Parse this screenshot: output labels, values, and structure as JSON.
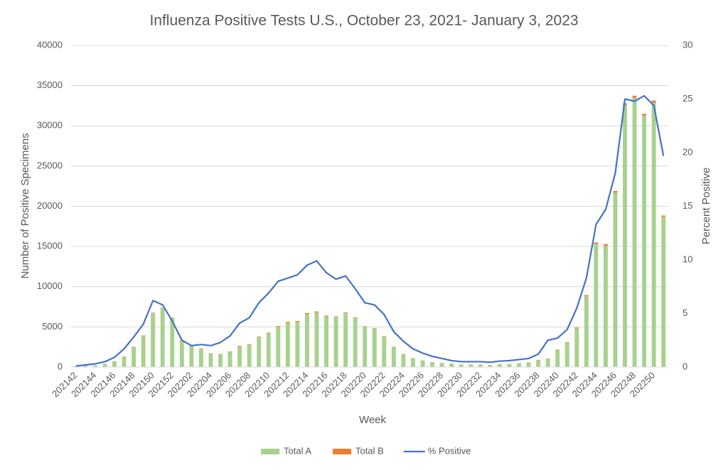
{
  "chart_data": {
    "type": "bar",
    "title": "Influenza Positive Tests U.S., October 23, 2021- January 3, 2023",
    "x_label": "Week",
    "y_label": "Number of Positive Specimens",
    "y2_label": "Percent Positive",
    "categories": [
      "202142",
      null,
      "202144",
      null,
      "202146",
      null,
      "202148",
      null,
      "202150",
      null,
      "202152",
      null,
      "202202",
      null,
      "202204",
      null,
      "202206",
      null,
      "202208",
      null,
      "202210",
      null,
      "202212",
      null,
      "202214",
      null,
      "202216",
      null,
      "202218",
      null,
      "202220",
      null,
      "202222",
      null,
      "202224",
      null,
      "202226",
      null,
      "202228",
      null,
      "202230",
      null,
      "202232",
      null,
      "202234",
      null,
      "202236",
      null,
      "202238",
      null,
      "202240",
      null,
      "202242",
      null,
      "202244",
      null,
      "202246",
      null,
      "202248",
      null,
      "202250",
      null
    ],
    "series": [
      {
        "name": "Total A",
        "color": "#a9d18e",
        "values": [
          100,
          150,
          200,
          400,
          700,
          1300,
          2500,
          3900,
          6700,
          7300,
          6100,
          3300,
          2700,
          2300,
          1700,
          1600,
          1900,
          2600,
          2800,
          3700,
          4200,
          5000,
          5500,
          5600,
          6600,
          6800,
          6300,
          6200,
          6700,
          6100,
          5000,
          4800,
          3800,
          2500,
          1600,
          1100,
          800,
          600,
          500,
          400,
          300,
          300,
          300,
          250,
          350,
          350,
          450,
          550,
          850,
          1000,
          2100,
          3000,
          4800,
          8800,
          15300,
          15100,
          21700,
          32600,
          33500,
          31300,
          32900,
          18700
        ]
      },
      {
        "name": "Total B",
        "color": "#ed7d31",
        "values": [
          10,
          10,
          10,
          10,
          20,
          20,
          30,
          40,
          60,
          70,
          60,
          40,
          30,
          30,
          30,
          30,
          40,
          50,
          60,
          70,
          80,
          100,
          120,
          130,
          120,
          110,
          100,
          90,
          80,
          70,
          60,
          50,
          40,
          30,
          20,
          20,
          20,
          20,
          20,
          20,
          20,
          20,
          20,
          20,
          20,
          20,
          20,
          30,
          40,
          50,
          60,
          80,
          120,
          150,
          200,
          200,
          200,
          200,
          250,
          200,
          250,
          150
        ]
      },
      {
        "name": "% Positive",
        "color": "#4472c4",
        "type": "line",
        "axis": "y2",
        "values": [
          0.1,
          0.2,
          0.3,
          0.5,
          0.9,
          1.7,
          2.8,
          4.0,
          6.2,
          5.8,
          4.3,
          2.5,
          2.0,
          2.1,
          2.0,
          2.3,
          2.9,
          4.1,
          4.6,
          6.0,
          6.9,
          8.0,
          8.3,
          8.6,
          9.5,
          9.9,
          8.8,
          8.2,
          8.5,
          7.3,
          6.0,
          5.8,
          4.9,
          3.3,
          2.4,
          1.7,
          1.3,
          1.0,
          0.8,
          0.6,
          0.5,
          0.5,
          0.5,
          0.45,
          0.55,
          0.6,
          0.7,
          0.8,
          1.2,
          2.5,
          2.7,
          3.5,
          5.5,
          8.3,
          13.3,
          14.7,
          18.1,
          25.0,
          24.8,
          25.3,
          24.4,
          19.7
        ]
      }
    ],
    "ylim": [
      0,
      40000
    ],
    "yticks": [
      0,
      5000,
      10000,
      15000,
      20000,
      25000,
      30000,
      35000,
      40000
    ],
    "y2lim": [
      0,
      30
    ],
    "y2ticks": [
      0,
      5,
      10,
      15,
      20,
      25,
      30
    ],
    "grid": true,
    "stacked": true,
    "legend": "bottom"
  }
}
